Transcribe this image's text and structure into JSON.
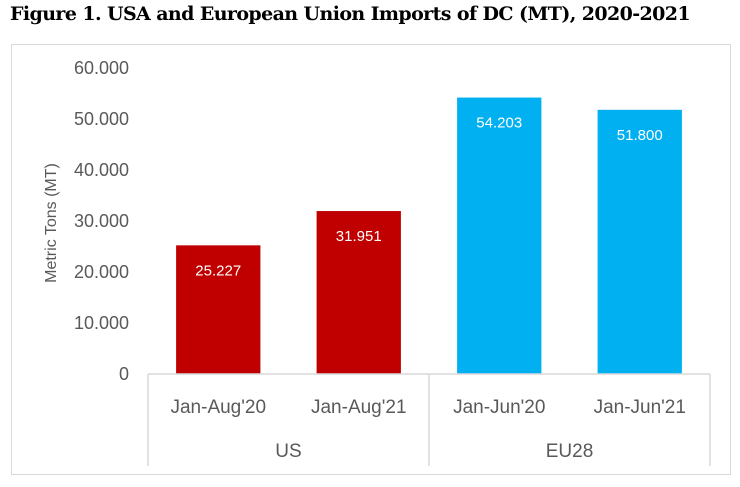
{
  "title": "Figure 1. USA and European Union Imports of DC (MT), 2020-2021",
  "chart_data": {
    "type": "bar",
    "title": "Figure 1. USA and European Union Imports of DC (MT), 2020-2021",
    "xlabel": "",
    "ylabel": "Metric Tons (MT)",
    "ylim": [
      0,
      60
    ],
    "yticks": [
      0,
      10,
      20,
      30,
      40,
      50,
      60
    ],
    "ytick_labels": [
      "0",
      "10.000",
      "20.000",
      "30.000",
      "40.000",
      "50.000",
      "60.000"
    ],
    "grid": false,
    "legend": "none",
    "groups": [
      {
        "name": "US",
        "color": "#C00000",
        "categories": [
          "Jan-Aug'20",
          "Jan-Aug'21"
        ],
        "values": [
          25.227,
          31.951
        ],
        "labels": [
          "25.227",
          "31.951"
        ]
      },
      {
        "name": "EU28",
        "color": "#00B0F0",
        "categories": [
          "Jan-Jun'20",
          "Jan-Jun'21"
        ],
        "values": [
          54.203,
          51.8
        ],
        "labels": [
          "54.203",
          "51.800"
        ]
      }
    ]
  }
}
